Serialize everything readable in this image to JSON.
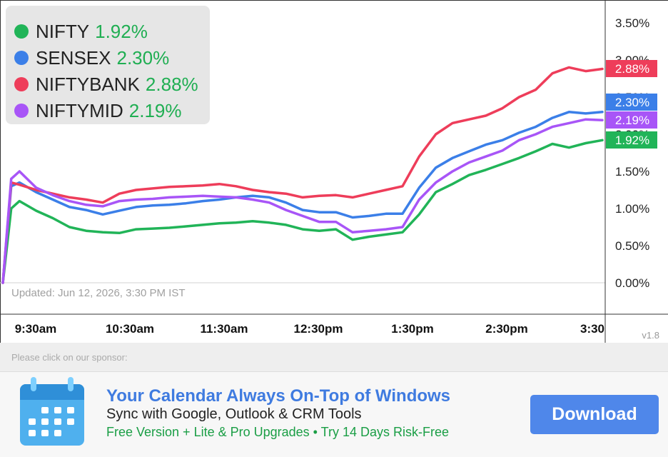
{
  "legend": [
    {
      "name": "NIFTY",
      "pct": "1.92%",
      "color": "#21b458"
    },
    {
      "name": "SENSEX",
      "pct": "2.30%",
      "color": "#3b7fe8"
    },
    {
      "name": "NIFTYBANK",
      "pct": "2.88%",
      "color": "#ee3d5a"
    },
    {
      "name": "NIFTYMID",
      "pct": "2.19%",
      "color": "#a855f7"
    }
  ],
  "updated": "Updated: Jun 12, 2026, 3:30 PM IST",
  "version": "v1.8",
  "sponsor_label": "Please click on our sponsor:",
  "ad": {
    "title": "Your Calendar Always On-Top of Windows",
    "subtitle": "Sync with Google, Outlook & CRM Tools",
    "promo": "Free Version + Lite & Pro Upgrades • Try 14 Days Risk-Free",
    "button": "Download",
    "icon": "calendar-icon"
  },
  "chart_data": {
    "type": "line",
    "x_ticks": [
      "9:30am",
      "10:30am",
      "11:30am",
      "12:30pm",
      "1:30pm",
      "2:30pm",
      "3:30"
    ],
    "y_ticks": [
      "0.00%",
      "0.50%",
      "1.00%",
      "1.50%",
      "2.00%",
      "2.50%",
      "3.00%",
      "3.50%"
    ],
    "ylim": [
      0,
      3.5
    ],
    "x_range_minutes": [
      0,
      360
    ],
    "end_labels": [
      "2.88%",
      "2.30%",
      "2.19%",
      "1.92%"
    ],
    "grid": false,
    "legend_position": "top-left",
    "series": [
      {
        "name": "NIFTY",
        "color": "#21b458",
        "x": [
          0,
          5,
          10,
          20,
          30,
          40,
          50,
          60,
          70,
          80,
          90,
          100,
          110,
          120,
          130,
          140,
          150,
          160,
          170,
          180,
          190,
          200,
          210,
          220,
          230,
          240,
          250,
          260,
          270,
          280,
          290,
          300,
          310,
          320,
          330,
          340,
          350,
          360
        ],
        "y": [
          0,
          1.0,
          1.1,
          0.97,
          0.87,
          0.75,
          0.7,
          0.68,
          0.67,
          0.72,
          0.73,
          0.74,
          0.76,
          0.78,
          0.8,
          0.81,
          0.83,
          0.81,
          0.78,
          0.72,
          0.7,
          0.72,
          0.58,
          0.62,
          0.65,
          0.68,
          0.92,
          1.22,
          1.33,
          1.45,
          1.52,
          1.6,
          1.68,
          1.77,
          1.87,
          1.82,
          1.88,
          1.92
        ]
      },
      {
        "name": "SENSEX",
        "color": "#3b7fe8",
        "x": [
          0,
          5,
          10,
          20,
          30,
          40,
          50,
          60,
          70,
          80,
          90,
          100,
          110,
          120,
          130,
          140,
          150,
          160,
          170,
          180,
          190,
          200,
          210,
          220,
          230,
          240,
          250,
          260,
          270,
          280,
          290,
          300,
          310,
          320,
          330,
          340,
          350,
          360
        ],
        "y": [
          0,
          1.3,
          1.35,
          1.22,
          1.12,
          1.02,
          0.98,
          0.92,
          0.97,
          1.02,
          1.04,
          1.05,
          1.07,
          1.1,
          1.12,
          1.15,
          1.17,
          1.15,
          1.08,
          0.98,
          0.95,
          0.95,
          0.88,
          0.9,
          0.93,
          0.93,
          1.28,
          1.55,
          1.68,
          1.77,
          1.86,
          1.92,
          2.02,
          2.1,
          2.22,
          2.3,
          2.28,
          2.3
        ]
      },
      {
        "name": "NIFTYBANK",
        "color": "#ee3d5a",
        "x": [
          0,
          5,
          10,
          20,
          30,
          40,
          50,
          60,
          70,
          80,
          90,
          100,
          110,
          120,
          130,
          140,
          150,
          160,
          170,
          180,
          190,
          200,
          210,
          220,
          230,
          240,
          250,
          260,
          270,
          280,
          290,
          300,
          310,
          320,
          330,
          340,
          350,
          360
        ],
        "y": [
          0,
          1.35,
          1.32,
          1.25,
          1.2,
          1.15,
          1.12,
          1.08,
          1.2,
          1.25,
          1.27,
          1.29,
          1.3,
          1.31,
          1.33,
          1.3,
          1.25,
          1.22,
          1.2,
          1.15,
          1.17,
          1.18,
          1.15,
          1.2,
          1.25,
          1.3,
          1.7,
          2.0,
          2.15,
          2.2,
          2.25,
          2.35,
          2.5,
          2.6,
          2.82,
          2.9,
          2.85,
          2.88
        ]
      },
      {
        "name": "NIFTYMID",
        "color": "#a855f7",
        "x": [
          0,
          5,
          10,
          20,
          30,
          40,
          50,
          60,
          70,
          80,
          90,
          100,
          110,
          120,
          130,
          140,
          150,
          160,
          170,
          180,
          190,
          200,
          210,
          220,
          230,
          240,
          250,
          260,
          270,
          280,
          290,
          300,
          310,
          320,
          330,
          340,
          350,
          360
        ],
        "y": [
          0,
          1.4,
          1.5,
          1.28,
          1.18,
          1.1,
          1.05,
          1.03,
          1.1,
          1.12,
          1.13,
          1.15,
          1.16,
          1.17,
          1.16,
          1.15,
          1.12,
          1.08,
          0.98,
          0.9,
          0.82,
          0.82,
          0.68,
          0.7,
          0.72,
          0.75,
          1.12,
          1.35,
          1.5,
          1.62,
          1.7,
          1.78,
          1.92,
          2.0,
          2.1,
          2.15,
          2.2,
          2.19
        ]
      }
    ]
  }
}
